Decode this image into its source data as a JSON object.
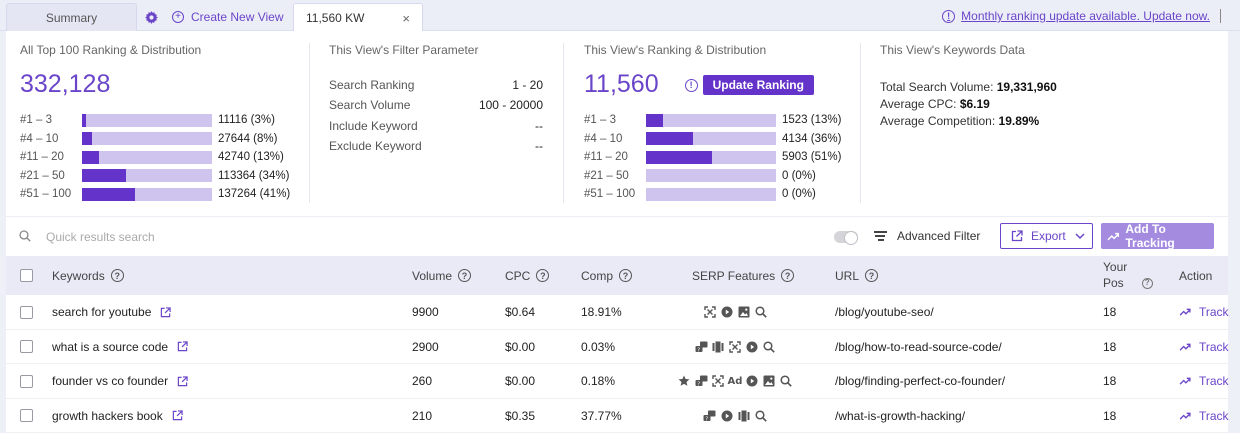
{
  "tabs": {
    "summary": "Summary",
    "create_new_view": "Create New View",
    "active_tab": "11,560 KW",
    "close": "×"
  },
  "notice": "Monthly ranking update available. Update now.",
  "all_top100": {
    "title": "All Top 100 Ranking & Distribution",
    "total": "332,128",
    "rows": [
      {
        "label": "#1 – 3",
        "value": "11116 (3%)",
        "fraction": 0.03
      },
      {
        "label": "#4 – 10",
        "value": "27644 (8%)",
        "fraction": 0.08
      },
      {
        "label": "#11 – 20",
        "value": "42740 (13%)",
        "fraction": 0.13
      },
      {
        "label": "#21 – 50",
        "value": "113364 (34%)",
        "fraction": 0.34
      },
      {
        "label": "#51 – 100",
        "value": "137264 (41%)",
        "fraction": 0.41
      }
    ]
  },
  "filter": {
    "title": "This View's Filter Parameter",
    "rows": [
      {
        "label": "Search Ranking",
        "value": "1 - 20"
      },
      {
        "label": "Search Volume",
        "value": "100 - 20000"
      },
      {
        "label": "Include Keyword",
        "value": "--"
      },
      {
        "label": "Exclude Keyword",
        "value": "--"
      }
    ]
  },
  "view_ranking": {
    "title": "This View's Ranking & Distribution",
    "total": "11,560",
    "update_button": "Update Ranking",
    "rows": [
      {
        "label": "#1 – 3",
        "value": "1523 (13%)",
        "fraction": 0.13
      },
      {
        "label": "#4 – 10",
        "value": "4134 (36%)",
        "fraction": 0.36
      },
      {
        "label": "#11 – 20",
        "value": "5903 (51%)",
        "fraction": 0.51
      },
      {
        "label": "#21 – 50",
        "value": "0 (0%)",
        "fraction": 0
      },
      {
        "label": "#51 – 100",
        "value": "0 (0%)",
        "fraction": 0
      }
    ]
  },
  "keywords_data": {
    "title": "This View's Keywords Data",
    "total_search_volume_label": "Total Search Volume:",
    "total_search_volume": "19,331,960",
    "avg_cpc_label": "Average CPC:",
    "avg_cpc": "$6.19",
    "avg_comp_label": "Average Competition:",
    "avg_comp": "19.89%"
  },
  "toolbar": {
    "search_placeholder": "Quick results search",
    "advanced_filter": "Advanced Filter",
    "export": "Export",
    "add_to_tracking": "Add To Tracking"
  },
  "table": {
    "headers": {
      "keywords": "Keywords",
      "volume": "Volume",
      "cpc": "CPC",
      "comp": "Comp",
      "serp": "SERP Features",
      "url": "URL",
      "your_pos_1": "Your",
      "your_pos_2": "Pos",
      "action": "Action"
    },
    "rows": [
      {
        "keyword": "search for youtube",
        "volume": "9900",
        "cpc": "$0.64",
        "comp": "18.91%",
        "serp": [
          "sitelinks",
          "video",
          "image",
          "search"
        ],
        "url": "/blog/youtube-seo/",
        "pos": "18",
        "action": "Track"
      },
      {
        "keyword": "what is a source code",
        "volume": "2900",
        "cpc": "$0.00",
        "comp": "0.03%",
        "serp": [
          "qa",
          "carousel",
          "sitelinks",
          "video",
          "search"
        ],
        "url": "/blog/how-to-read-source-code/",
        "pos": "18",
        "action": "Track"
      },
      {
        "keyword": "founder vs co founder",
        "volume": "260",
        "cpc": "$0.00",
        "comp": "0.18%",
        "serp": [
          "star",
          "qa",
          "sitelinks",
          "ad",
          "video",
          "image",
          "search"
        ],
        "url": "/blog/finding-perfect-co-founder/",
        "pos": "18",
        "action": "Track"
      },
      {
        "keyword": "growth hackers book",
        "volume": "210",
        "cpc": "$0.35",
        "comp": "37.77%",
        "serp": [
          "qa",
          "video",
          "carousel",
          "search"
        ],
        "url": "/what-is-growth-hacking/",
        "pos": "18",
        "action": "Track"
      }
    ]
  }
}
